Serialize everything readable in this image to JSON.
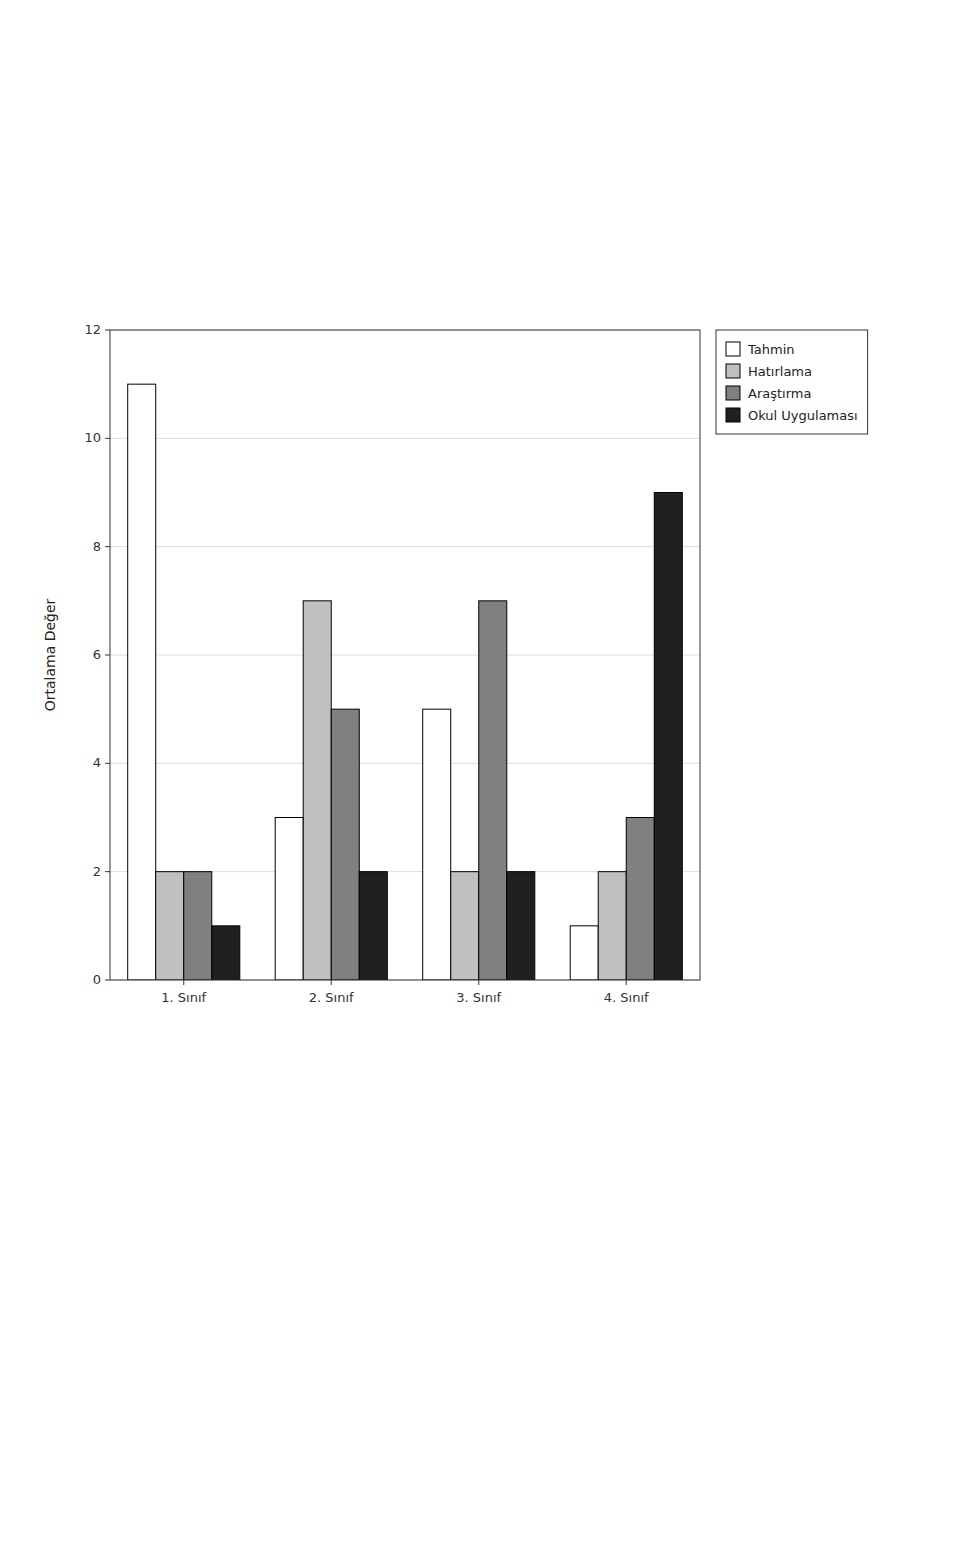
{
  "chart_data": {
    "type": "bar",
    "categories": [
      "1. Sınıf",
      "2. Sınıf",
      "3. Sınıf",
      "4. Sınıf"
    ],
    "series": [
      {
        "name": "Tahmin",
        "color": "#ffffff",
        "values": [
          11,
          3,
          5,
          1
        ]
      },
      {
        "name": "Hatırlama",
        "color": "#c0c0c0",
        "values": [
          2,
          7,
          2,
          2
        ]
      },
      {
        "name": "Araştırma",
        "color": "#808080",
        "values": [
          2,
          5,
          7,
          3
        ]
      },
      {
        "name": "Okul Uygulaması",
        "color": "#202020",
        "values": [
          1,
          2,
          2,
          9
        ]
      }
    ],
    "y_label": "Ortalama Değer",
    "ylim": [
      0,
      12
    ],
    "yticks": [
      0,
      2,
      4,
      6,
      8,
      10,
      12
    ],
    "grid": true,
    "legend": "upper right"
  }
}
